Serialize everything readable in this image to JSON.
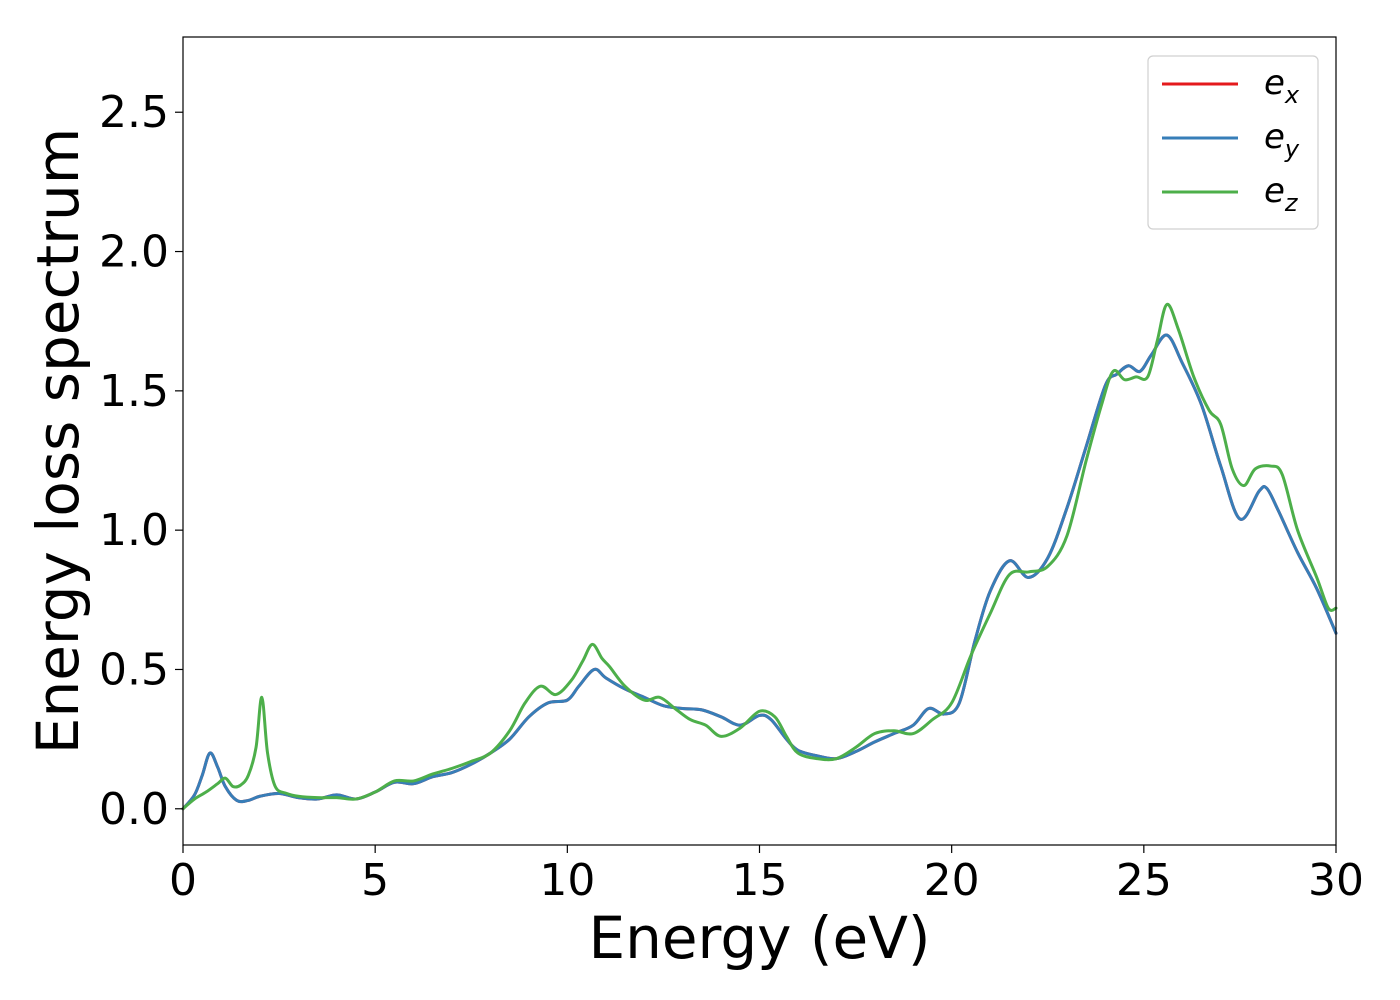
{
  "chart_data": {
    "type": "line",
    "xlabel": "Energy (eV)",
    "ylabel": "Energy loss spectrum",
    "xlim": [
      0,
      30
    ],
    "ylim": [
      -0.13,
      2.77
    ],
    "xticks": [
      0,
      5,
      10,
      15,
      20,
      25,
      30
    ],
    "xtick_labels": [
      "0",
      "5",
      "10",
      "15",
      "20",
      "25",
      "30"
    ],
    "yticks": [
      0.0,
      0.5,
      1.0,
      1.5,
      2.0,
      2.5
    ],
    "ytick_labels": [
      "0.0",
      "0.5",
      "1.0",
      "1.5",
      "2.0",
      "2.5"
    ],
    "grid": false,
    "legend_position": "top-right",
    "series": [
      {
        "name": "e",
        "subscript": "x",
        "color": "#e41a1c",
        "x": [
          0,
          0.3,
          0.5,
          0.7,
          0.9,
          1.1,
          1.4,
          1.7,
          2.0,
          2.5,
          3.0,
          3.5,
          4.0,
          4.5,
          5.0,
          5.5,
          6.0,
          6.5,
          7.0,
          7.5,
          8.0,
          8.5,
          9.0,
          9.5,
          10.0,
          10.3,
          10.7,
          11.0,
          11.5,
          12.0,
          12.5,
          13.0,
          13.5,
          14.0,
          14.5,
          15.0,
          15.3,
          15.7,
          16.0,
          16.5,
          17.0,
          17.5,
          18.0,
          18.5,
          19.0,
          19.4,
          19.8,
          20.2,
          20.6,
          21.0,
          21.5,
          22.0,
          22.5,
          23.0,
          23.5,
          24.0,
          24.3,
          24.6,
          24.9,
          25.2,
          25.6,
          26.0,
          26.5,
          27.0,
          27.5,
          28.0,
          28.2,
          28.5,
          29.0,
          29.5,
          30.0
        ],
        "y": [
          0.0,
          0.05,
          0.12,
          0.2,
          0.15,
          0.08,
          0.03,
          0.03,
          0.045,
          0.055,
          0.04,
          0.035,
          0.05,
          0.035,
          0.06,
          0.095,
          0.09,
          0.115,
          0.13,
          0.16,
          0.2,
          0.25,
          0.33,
          0.38,
          0.39,
          0.44,
          0.5,
          0.47,
          0.43,
          0.4,
          0.37,
          0.36,
          0.355,
          0.33,
          0.3,
          0.335,
          0.32,
          0.25,
          0.21,
          0.19,
          0.18,
          0.205,
          0.24,
          0.27,
          0.3,
          0.36,
          0.34,
          0.38,
          0.6,
          0.78,
          0.89,
          0.83,
          0.9,
          1.08,
          1.3,
          1.52,
          1.56,
          1.59,
          1.57,
          1.63,
          1.7,
          1.6,
          1.45,
          1.23,
          1.04,
          1.14,
          1.15,
          1.07,
          0.92,
          0.79,
          0.63
        ]
      },
      {
        "name": "e",
        "subscript": "y",
        "color": "#377eb8",
        "x": [
          0,
          0.3,
          0.5,
          0.7,
          0.9,
          1.1,
          1.4,
          1.7,
          2.0,
          2.5,
          3.0,
          3.5,
          4.0,
          4.5,
          5.0,
          5.5,
          6.0,
          6.5,
          7.0,
          7.5,
          8.0,
          8.5,
          9.0,
          9.5,
          10.0,
          10.3,
          10.7,
          11.0,
          11.5,
          12.0,
          12.5,
          13.0,
          13.5,
          14.0,
          14.5,
          15.0,
          15.3,
          15.7,
          16.0,
          16.5,
          17.0,
          17.5,
          18.0,
          18.5,
          19.0,
          19.4,
          19.8,
          20.2,
          20.6,
          21.0,
          21.5,
          22.0,
          22.5,
          23.0,
          23.5,
          24.0,
          24.3,
          24.6,
          24.9,
          25.2,
          25.6,
          26.0,
          26.5,
          27.0,
          27.5,
          28.0,
          28.2,
          28.5,
          29.0,
          29.5,
          30.0
        ],
        "y": [
          0.0,
          0.05,
          0.12,
          0.2,
          0.15,
          0.08,
          0.03,
          0.03,
          0.045,
          0.055,
          0.04,
          0.035,
          0.05,
          0.035,
          0.06,
          0.095,
          0.09,
          0.115,
          0.13,
          0.16,
          0.2,
          0.25,
          0.33,
          0.38,
          0.39,
          0.44,
          0.5,
          0.47,
          0.43,
          0.4,
          0.37,
          0.36,
          0.355,
          0.33,
          0.3,
          0.335,
          0.32,
          0.25,
          0.21,
          0.19,
          0.18,
          0.205,
          0.24,
          0.27,
          0.3,
          0.36,
          0.34,
          0.38,
          0.6,
          0.78,
          0.89,
          0.83,
          0.9,
          1.08,
          1.3,
          1.52,
          1.56,
          1.59,
          1.57,
          1.63,
          1.7,
          1.6,
          1.45,
          1.23,
          1.04,
          1.14,
          1.15,
          1.07,
          0.92,
          0.79,
          0.63
        ]
      },
      {
        "name": "e",
        "subscript": "z",
        "color": "#4daf4a",
        "x": [
          0,
          0.3,
          0.6,
          0.9,
          1.1,
          1.3,
          1.5,
          1.7,
          1.9,
          2.05,
          2.2,
          2.4,
          2.7,
          3.0,
          3.5,
          4.0,
          4.5,
          5.0,
          5.5,
          6.0,
          6.5,
          7.0,
          7.5,
          8.0,
          8.5,
          8.9,
          9.3,
          9.7,
          10.1,
          10.4,
          10.65,
          10.9,
          11.1,
          11.5,
          12.0,
          12.4,
          12.8,
          13.2,
          13.6,
          14.0,
          14.5,
          15.0,
          15.4,
          15.7,
          16.0,
          16.5,
          17.0,
          17.5,
          18.0,
          18.5,
          19.0,
          19.5,
          20.0,
          20.5,
          21.0,
          21.5,
          22.0,
          22.5,
          23.0,
          23.5,
          23.9,
          24.2,
          24.5,
          24.8,
          25.1,
          25.35,
          25.6,
          25.9,
          26.3,
          26.7,
          27.0,
          27.3,
          27.6,
          27.9,
          28.3,
          28.6,
          29.0,
          29.5,
          29.8,
          30.0
        ],
        "y": [
          0.0,
          0.035,
          0.06,
          0.09,
          0.11,
          0.08,
          0.085,
          0.12,
          0.22,
          0.4,
          0.2,
          0.08,
          0.055,
          0.045,
          0.04,
          0.04,
          0.035,
          0.06,
          0.1,
          0.1,
          0.125,
          0.145,
          0.17,
          0.2,
          0.28,
          0.38,
          0.44,
          0.41,
          0.46,
          0.53,
          0.59,
          0.54,
          0.51,
          0.44,
          0.39,
          0.4,
          0.36,
          0.32,
          0.3,
          0.26,
          0.29,
          0.35,
          0.33,
          0.26,
          0.2,
          0.18,
          0.18,
          0.22,
          0.27,
          0.28,
          0.27,
          0.32,
          0.38,
          0.55,
          0.7,
          0.84,
          0.85,
          0.87,
          0.98,
          1.25,
          1.45,
          1.57,
          1.54,
          1.55,
          1.55,
          1.68,
          1.81,
          1.72,
          1.55,
          1.43,
          1.38,
          1.22,
          1.16,
          1.22,
          1.23,
          1.2,
          1.0,
          0.83,
          0.72,
          0.72
        ]
      }
    ]
  }
}
